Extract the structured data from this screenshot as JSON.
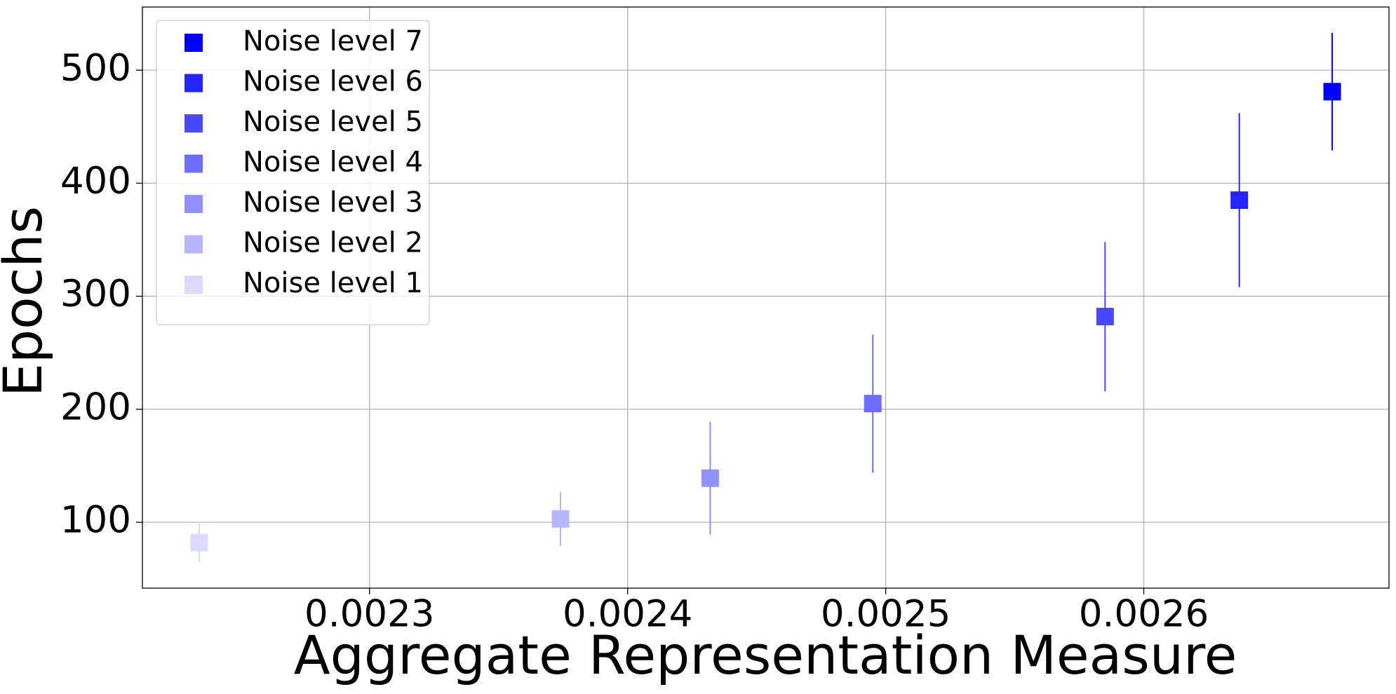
{
  "chart_data": {
    "type": "errorbar",
    "xlabel": "Aggregate Representation Measure",
    "ylabel": "Epochs",
    "xlim": [
      0.002212,
      0.002695
    ],
    "ylim": [
      41.7,
      555.9
    ],
    "xticks": [
      0.0023,
      0.0024,
      0.0025,
      0.0026
    ],
    "yticks": [
      100,
      200,
      300,
      400,
      500
    ],
    "grid": true,
    "legend": "upper left",
    "series": [
      {
        "name": "Noise level 7",
        "color": "#0000ff",
        "x": [
          0.002673
        ],
        "values": [
          481
        ],
        "errors": [
          52
        ]
      },
      {
        "name": "Noise level 6",
        "color": "#2424ff",
        "x": [
          0.002637
        ],
        "values": [
          385
        ],
        "errors": [
          77
        ]
      },
      {
        "name": "Noise level 5",
        "color": "#4848ff",
        "x": [
          0.002585
        ],
        "values": [
          282
        ],
        "errors": [
          66
        ]
      },
      {
        "name": "Noise level 4",
        "color": "#6d6dff",
        "x": [
          0.002495
        ],
        "values": [
          205
        ],
        "errors": [
          61
        ]
      },
      {
        "name": "Noise level 3",
        "color": "#9191ff",
        "x": [
          0.002432
        ],
        "values": [
          139
        ],
        "errors": [
          50
        ]
      },
      {
        "name": "Noise level 2",
        "color": "#b6b6ff",
        "x": [
          0.002374
        ],
        "values": [
          103
        ],
        "errors": [
          24
        ]
      },
      {
        "name": "Noise level 1",
        "color": "#dadaff",
        "x": [
          0.002234
        ],
        "values": [
          82
        ],
        "errors": [
          17
        ]
      }
    ]
  }
}
